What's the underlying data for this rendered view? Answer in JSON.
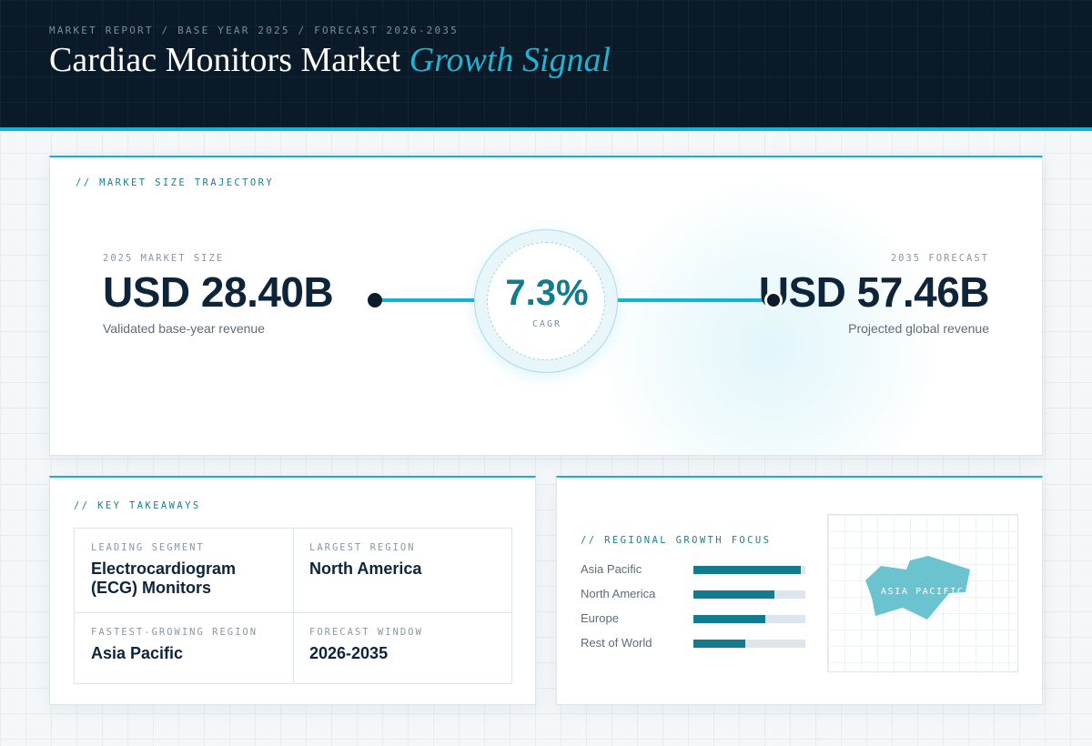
{
  "header": {
    "kicker": "MARKET REPORT / BASE YEAR 2025 / FORECAST 2026-2035",
    "title_main": "Cardiac Monitors Market",
    "title_accent": "Growth Signal"
  },
  "trajectory": {
    "section_label": "// MARKET SIZE TRAJECTORY",
    "start": {
      "label": "2025 MARKET SIZE",
      "value": "USD 28.40B",
      "description": "Validated base-year revenue"
    },
    "end": {
      "label": "2035 FORECAST",
      "value": "USD 57.46B",
      "description": "Projected global revenue"
    },
    "cagr": {
      "value": "7.3%",
      "label": "CAGR"
    }
  },
  "takeaways": {
    "section_label": "// KEY TAKEAWAYS",
    "items": [
      {
        "label": "LEADING SEGMENT",
        "value": "Electrocardiogram (ECG) Monitors"
      },
      {
        "label": "LARGEST REGION",
        "value": "North America"
      },
      {
        "label": "FASTEST-GROWING REGION",
        "value": "Asia Pacific"
      },
      {
        "label": "FORECAST WINDOW",
        "value": "2026-2035"
      }
    ]
  },
  "regional": {
    "section_label": "// REGIONAL GROWTH FOCUS",
    "bars": [
      {
        "name": "Asia Pacific",
        "fraction": 0.96
      },
      {
        "name": "North America",
        "fraction": 0.72
      },
      {
        "name": "Europe",
        "fraction": 0.64
      },
      {
        "name": "Rest of World",
        "fraction": 0.46
      }
    ],
    "map_label": "ASIA PACIFIC",
    "map_color": "#6cc3d0"
  },
  "colors": {
    "accent": "#11b4d4",
    "dark": "#0b1a28",
    "teal": "#137b8e"
  }
}
